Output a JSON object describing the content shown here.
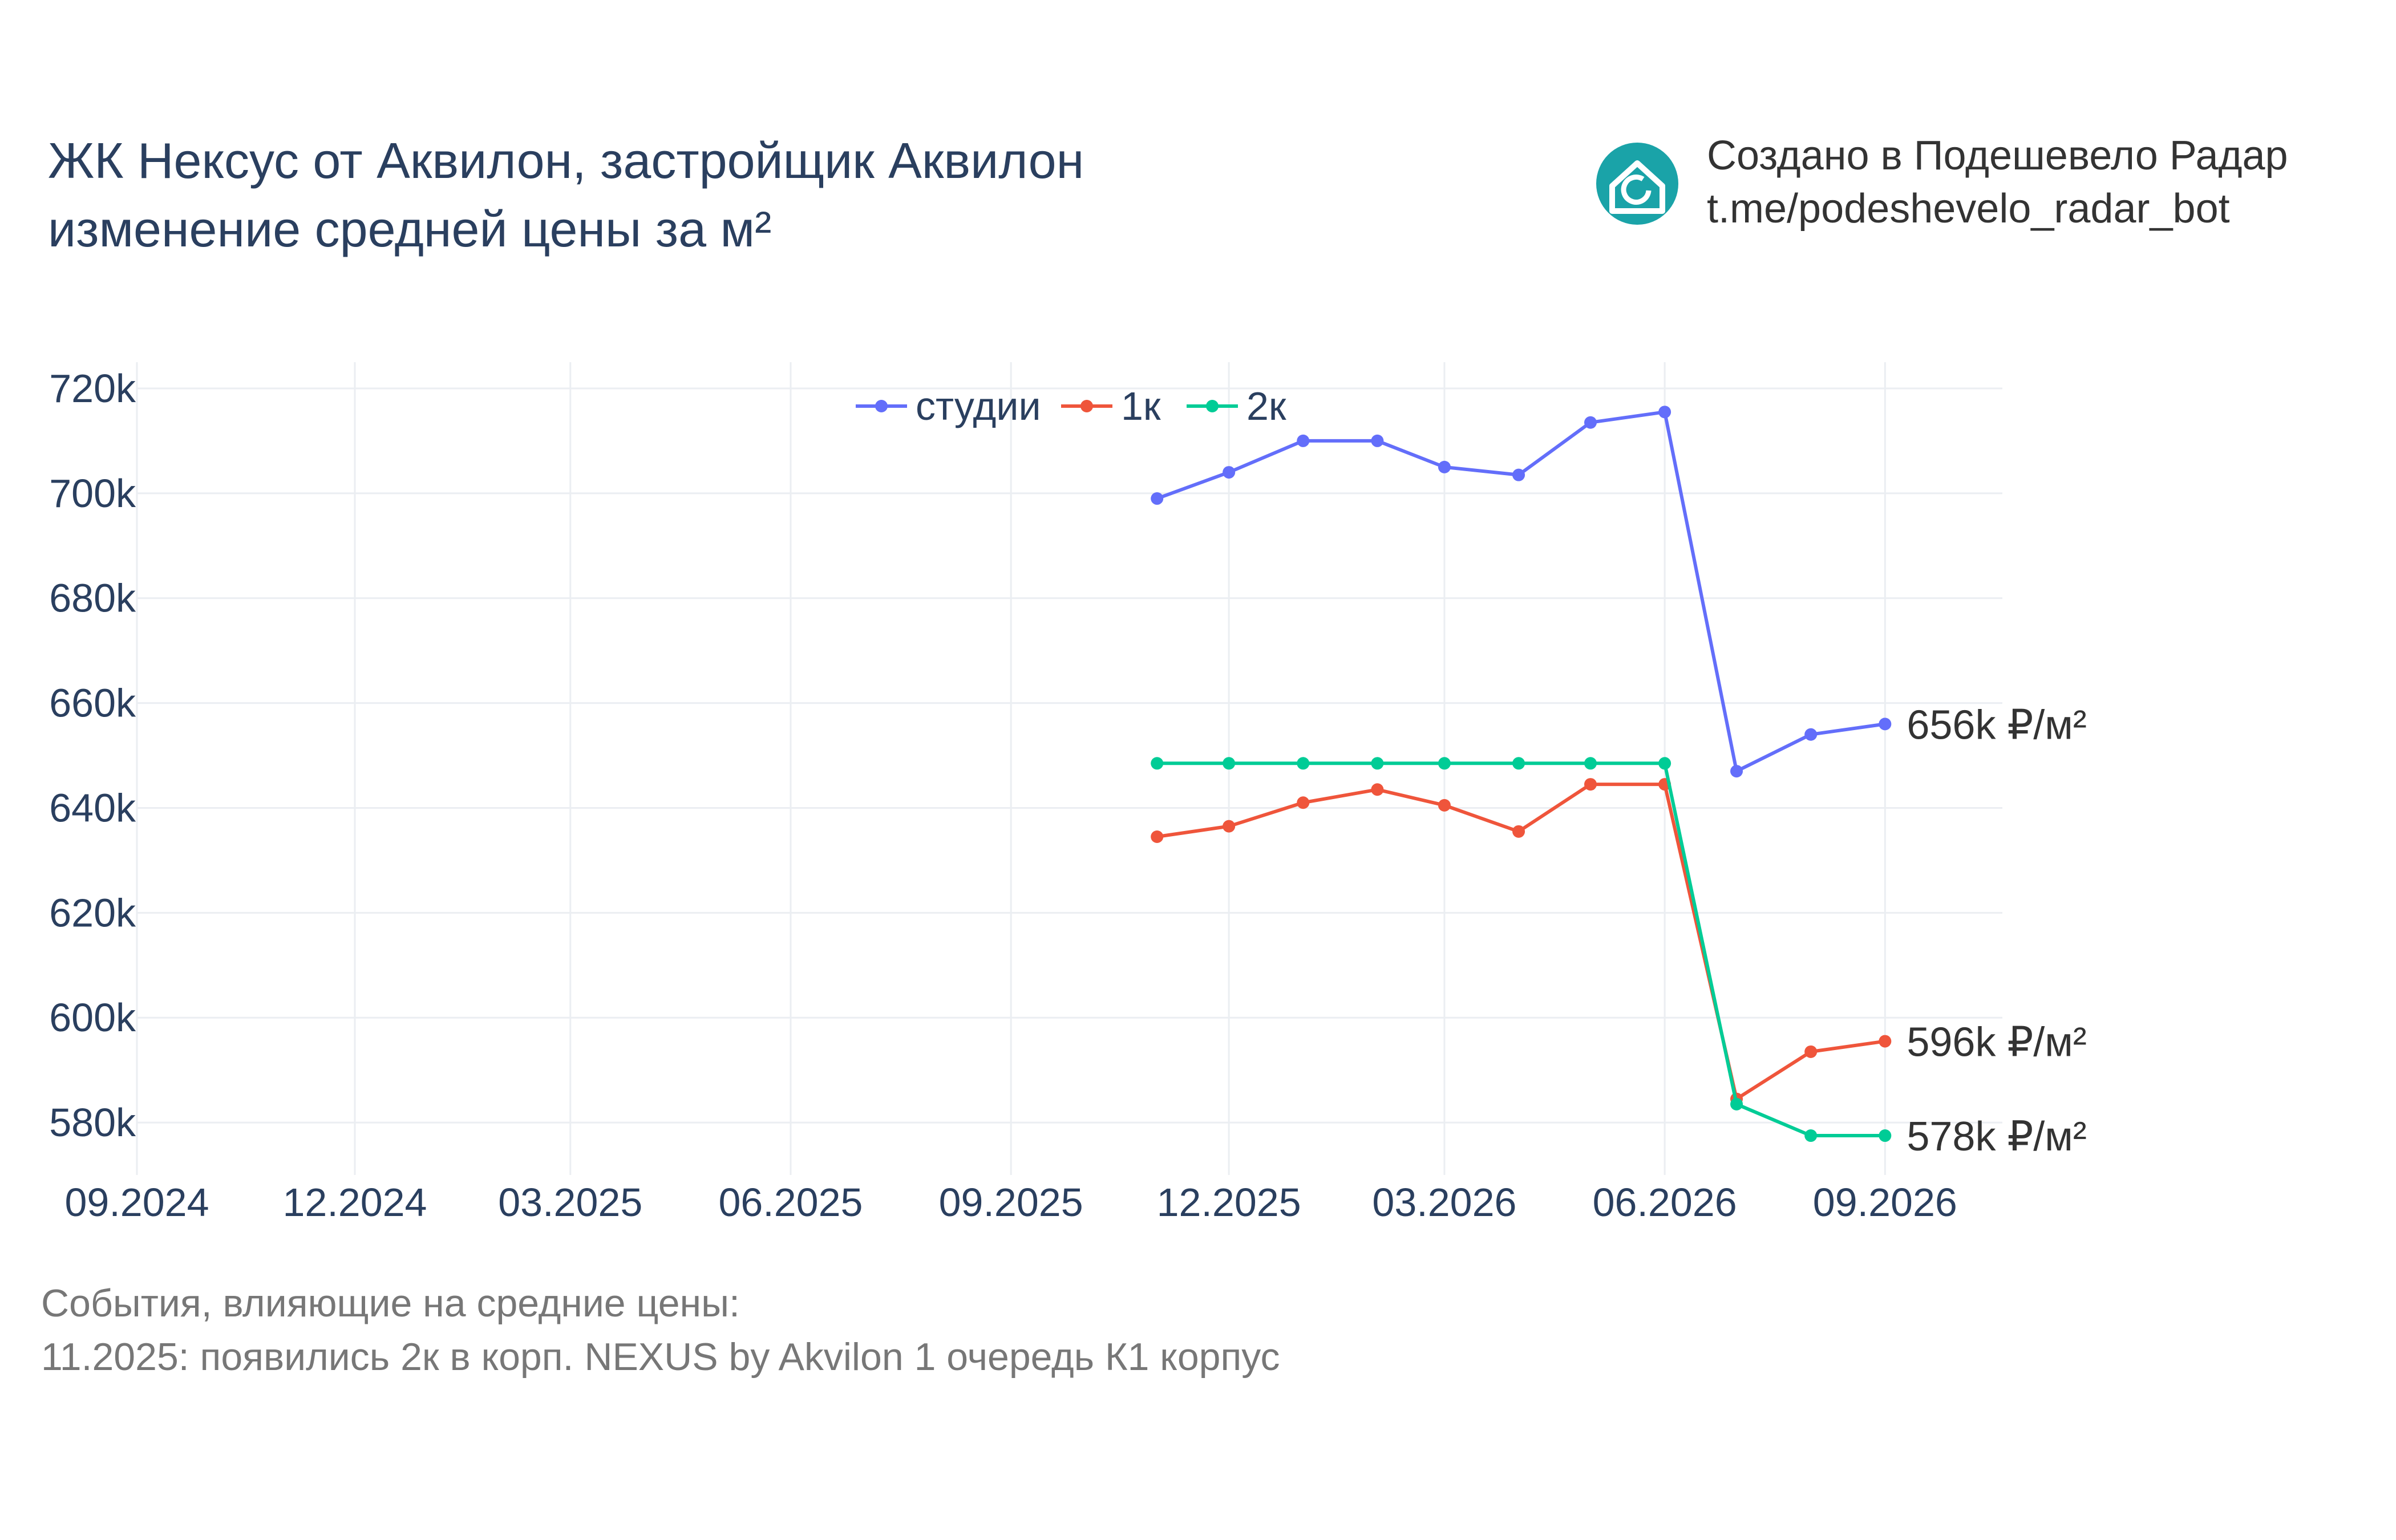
{
  "header": {
    "title_line1": "ЖК Нексус от Аквилон, застройщик Аквилон",
    "title_line2": "изменение средней цены за м²",
    "credit_line1": "Создано в Подешевело Радар",
    "credit_line2": "t.me/podeshevelo_radar_bot",
    "logo_icon": "house-refresh-icon",
    "logo_color": "#1aa3a8"
  },
  "events": {
    "heading": "События, влияющие на средние цены:",
    "items": [
      "11.2025: появились 2к в корп. NEXUS by Akvilon 1 очередь К1 корпус"
    ]
  },
  "chart_data": {
    "type": "line",
    "x_ticks": [
      "09.2024",
      "12.2024",
      "03.2025",
      "06.2025",
      "09.2025",
      "12.2025",
      "03.2026",
      "06.2026",
      "09.2026"
    ],
    "y_ticks": [
      "580k",
      "600k",
      "620k",
      "640k",
      "660k",
      "680k",
      "700k",
      "720k"
    ],
    "ylim": [
      570000,
      725000
    ],
    "xlim": [
      "2024-09-01",
      "2026-10-20"
    ],
    "x": [
      "2025-11-01",
      "2025-12-01",
      "2026-01-01",
      "2026-02-01",
      "2026-03-01",
      "2026-04-01",
      "2026-05-01",
      "2026-06-01",
      "2026-07-01",
      "2026-08-01",
      "2026-09-01"
    ],
    "series": [
      {
        "name": "студии",
        "color": "#636efa",
        "values": [
          699000,
          704000,
          710000,
          710000,
          705000,
          703500,
          713500,
          715500,
          647000,
          654000,
          656000
        ],
        "end_label": "656k ₽/м²"
      },
      {
        "name": "1к",
        "color": "#ef553b",
        "values": [
          634500,
          636500,
          641000,
          643500,
          640500,
          635500,
          644500,
          644500,
          584500,
          593500,
          595500
        ],
        "end_label": "596k ₽/м²"
      },
      {
        "name": "2к",
        "color": "#00cc96",
        "values": [
          648500,
          648500,
          648500,
          648500,
          648500,
          648500,
          648500,
          648500,
          583500,
          577500,
          577500
        ],
        "end_label": "578k ₽/м²"
      }
    ],
    "grid": true,
    "legend_position": "top-center"
  }
}
